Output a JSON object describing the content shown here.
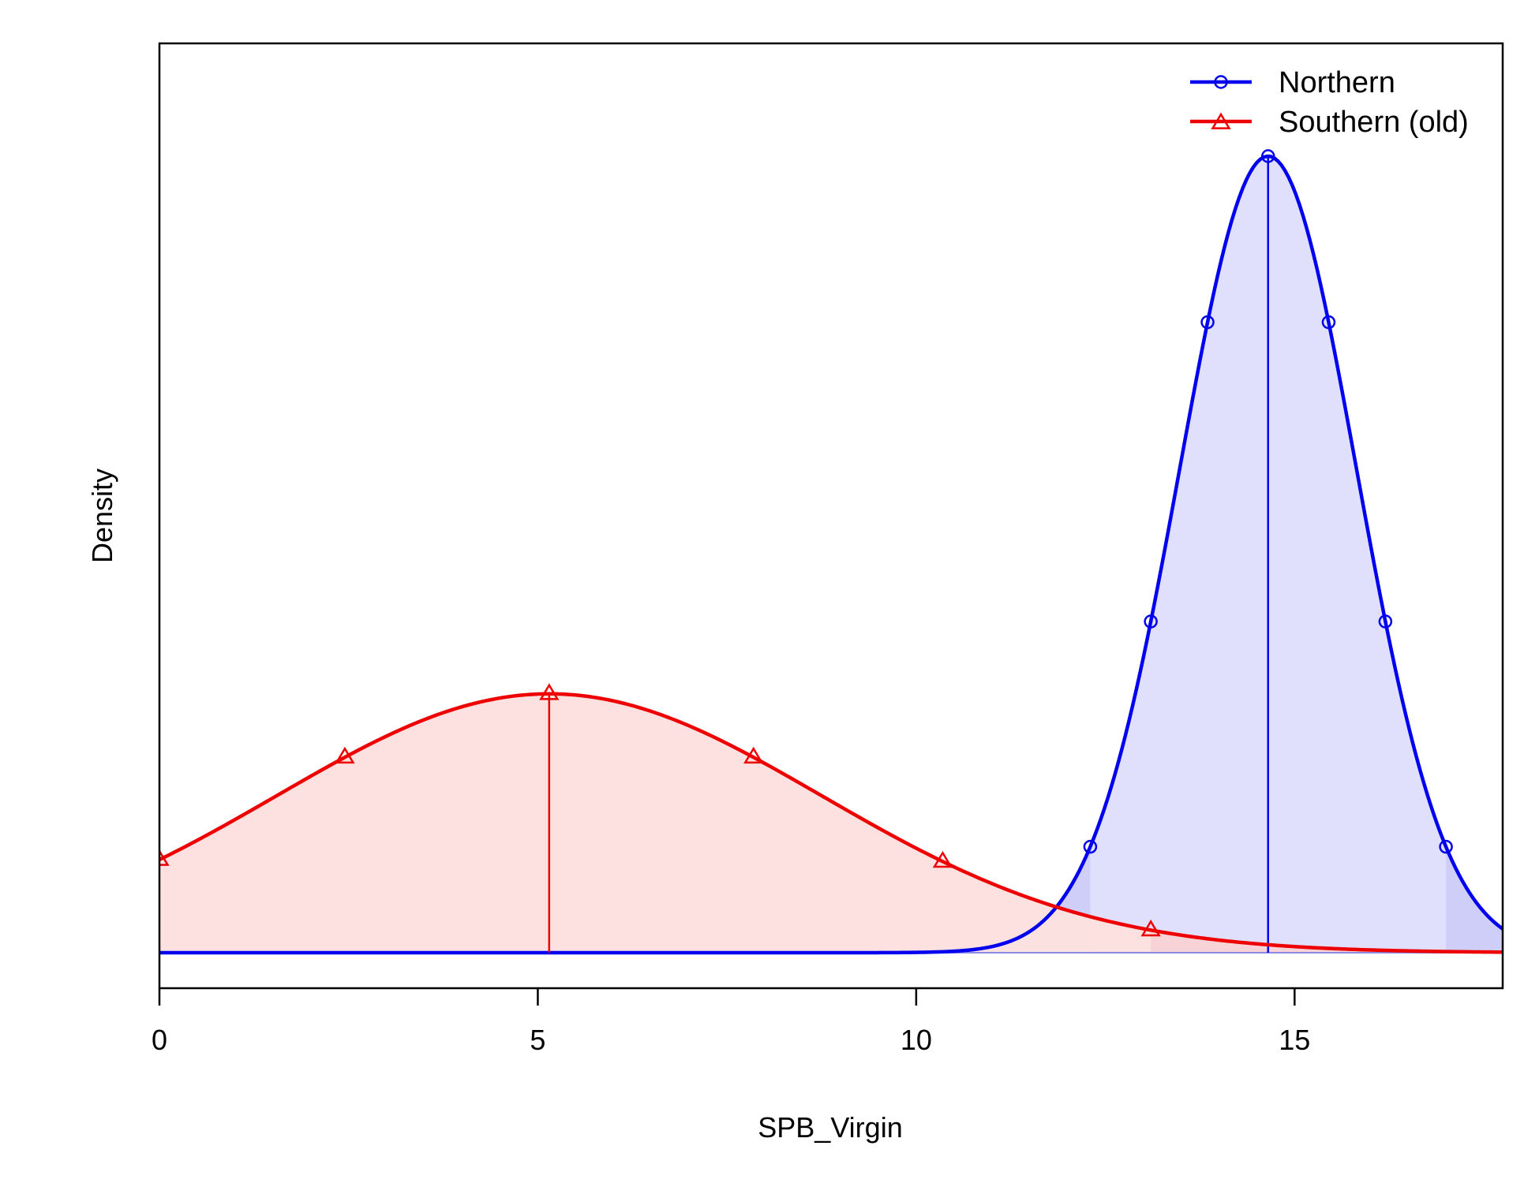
{
  "chart_data": {
    "type": "line",
    "title": "",
    "xlabel": "SPB_Virgin",
    "ylabel": "Density",
    "xlim": [
      0,
      17.75
    ],
    "x_ticks": [
      0,
      5,
      10,
      15
    ],
    "grid": false,
    "y_tick_labels_shown": false,
    "legend_position": "top-right",
    "series": [
      {
        "name": "Northern",
        "distribution": "normal",
        "mean": 14.65,
        "sd": 1.17,
        "marker": "circle",
        "color": "#0000ee",
        "fill_color": "#e2e2fc",
        "tail_fill_color": "#c6c6f8",
        "interval": [
          12.3,
          17.0
        ],
        "median_line_x": 14.65,
        "marker_x": [
          12.3,
          13.1,
          13.85,
          14.65,
          15.45,
          16.2,
          17.0
        ]
      },
      {
        "name": "Southern (old)",
        "distribution": "normal",
        "mean": 5.15,
        "sd": 3.6,
        "marker": "triangle",
        "color": "#ee0000",
        "fill_color": "#fde2e2",
        "tail_fill_color": "#fad0d0",
        "interval": [
          0,
          13.1
        ],
        "median_line_x": 5.15,
        "marker_x": [
          0,
          2.45,
          5.15,
          7.85,
          10.35,
          13.1
        ]
      }
    ]
  }
}
